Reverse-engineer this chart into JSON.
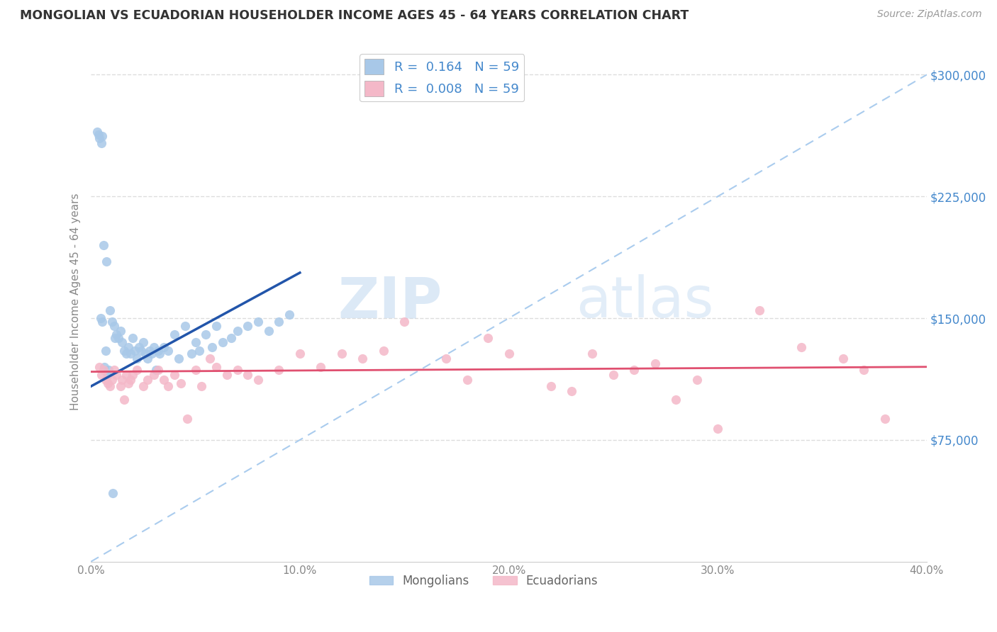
{
  "title": "MONGOLIAN VS ECUADORIAN HOUSEHOLDER INCOME AGES 45 - 64 YEARS CORRELATION CHART",
  "source": "Source: ZipAtlas.com",
  "xlabel_ticks": [
    "0.0%",
    "10.0%",
    "20.0%",
    "30.0%",
    "40.0%"
  ],
  "xlabel_tick_vals": [
    0.0,
    10.0,
    20.0,
    30.0,
    40.0
  ],
  "ylabel_ticks": [
    "$75,000",
    "$150,000",
    "$225,000",
    "$300,000"
  ],
  "ylabel_tick_vals": [
    75000,
    150000,
    225000,
    300000
  ],
  "xlim": [
    0.0,
    40.0
  ],
  "ylim": [
    0,
    320000
  ],
  "legend_mongolian_R": "0.164",
  "legend_mongolian_N": "59",
  "legend_ecuadorian_R": "0.008",
  "legend_ecuadorian_N": "59",
  "mongolian_color": "#a8c8e8",
  "ecuadorian_color": "#f4b8c8",
  "mongolian_line_color": "#2255aa",
  "ecuadorian_line_color": "#e05070",
  "reference_line_color": "#aaccee",
  "watermark_color": "#c8ddf0",
  "watermark_text": "ZIPatlas",
  "background_color": "#ffffff",
  "grid_color": "#dddddd",
  "ylabel_color": "#4488cc",
  "title_color": "#333333",
  "source_color": "#999999",
  "tick_color": "#888888",
  "legend_label_color": "#4488cc",
  "bottom_legend_color": "#666666",
  "mongo_x": [
    0.3,
    0.35,
    0.4,
    0.5,
    0.55,
    0.6,
    0.65,
    0.7,
    0.8,
    0.85,
    0.9,
    1.0,
    1.05,
    1.1,
    1.2,
    1.3,
    1.4,
    1.5,
    1.6,
    1.7,
    1.8,
    1.9,
    2.0,
    2.1,
    2.2,
    2.3,
    2.4,
    2.5,
    2.6,
    2.7,
    2.8,
    2.9,
    3.0,
    3.1,
    3.2,
    3.3,
    3.5,
    3.7,
    4.0,
    4.2,
    4.5,
    4.8,
    5.0,
    5.2,
    5.5,
    5.8,
    6.0,
    6.3,
    6.7,
    7.0,
    7.5,
    8.0,
    8.5,
    9.0,
    9.5,
    0.45,
    0.55,
    1.15,
    0.75
  ],
  "mongo_y": [
    265000,
    263000,
    261000,
    258000,
    262000,
    195000,
    120000,
    130000,
    115000,
    118000,
    155000,
    148000,
    42000,
    145000,
    140000,
    138000,
    142000,
    135000,
    130000,
    128000,
    132000,
    128000,
    138000,
    130000,
    125000,
    132000,
    130000,
    135000,
    128000,
    125000,
    130000,
    128000,
    132000,
    118000,
    130000,
    128000,
    132000,
    130000,
    140000,
    125000,
    145000,
    128000,
    135000,
    130000,
    140000,
    132000,
    145000,
    135000,
    138000,
    142000,
    145000,
    148000,
    142000,
    148000,
    152000,
    150000,
    148000,
    138000,
    185000
  ],
  "ecua_x": [
    0.4,
    0.5,
    0.6,
    0.7,
    0.8,
    0.9,
    1.0,
    1.1,
    1.2,
    1.4,
    1.5,
    1.6,
    1.7,
    1.8,
    1.9,
    2.0,
    2.2,
    2.5,
    2.7,
    3.0,
    3.2,
    3.5,
    3.7,
    4.0,
    4.3,
    4.6,
    5.0,
    5.3,
    5.7,
    6.0,
    6.5,
    7.0,
    7.5,
    8.0,
    9.0,
    10.0,
    11.0,
    12.0,
    14.0,
    15.0,
    17.0,
    18.0,
    19.0,
    20.0,
    22.0,
    24.0,
    25.0,
    27.0,
    28.0,
    29.0,
    30.0,
    32.0,
    34.0,
    36.0,
    37.0,
    38.0,
    23.0,
    26.0,
    13.0
  ],
  "ecua_y": [
    120000,
    115000,
    118000,
    112000,
    110000,
    108000,
    112000,
    118000,
    115000,
    108000,
    112000,
    100000,
    115000,
    110000,
    112000,
    115000,
    118000,
    108000,
    112000,
    115000,
    118000,
    112000,
    108000,
    115000,
    110000,
    88000,
    118000,
    108000,
    125000,
    120000,
    115000,
    118000,
    115000,
    112000,
    118000,
    128000,
    120000,
    128000,
    130000,
    148000,
    125000,
    112000,
    138000,
    128000,
    108000,
    128000,
    115000,
    122000,
    100000,
    112000,
    82000,
    155000,
    132000,
    125000,
    118000,
    88000,
    105000,
    118000,
    125000
  ],
  "mongo_trend_x0": 0.0,
  "mongo_trend_y0": 108000,
  "mongo_trend_x1": 10.0,
  "mongo_trend_y1": 178000,
  "ecua_trend_x0": 0.0,
  "ecua_trend_y0": 117000,
  "ecua_trend_x1": 40.0,
  "ecua_trend_y1": 120000,
  "ref_line_x0": 0.0,
  "ref_line_y0": 0,
  "ref_line_x1": 40.0,
  "ref_line_y1": 300000
}
